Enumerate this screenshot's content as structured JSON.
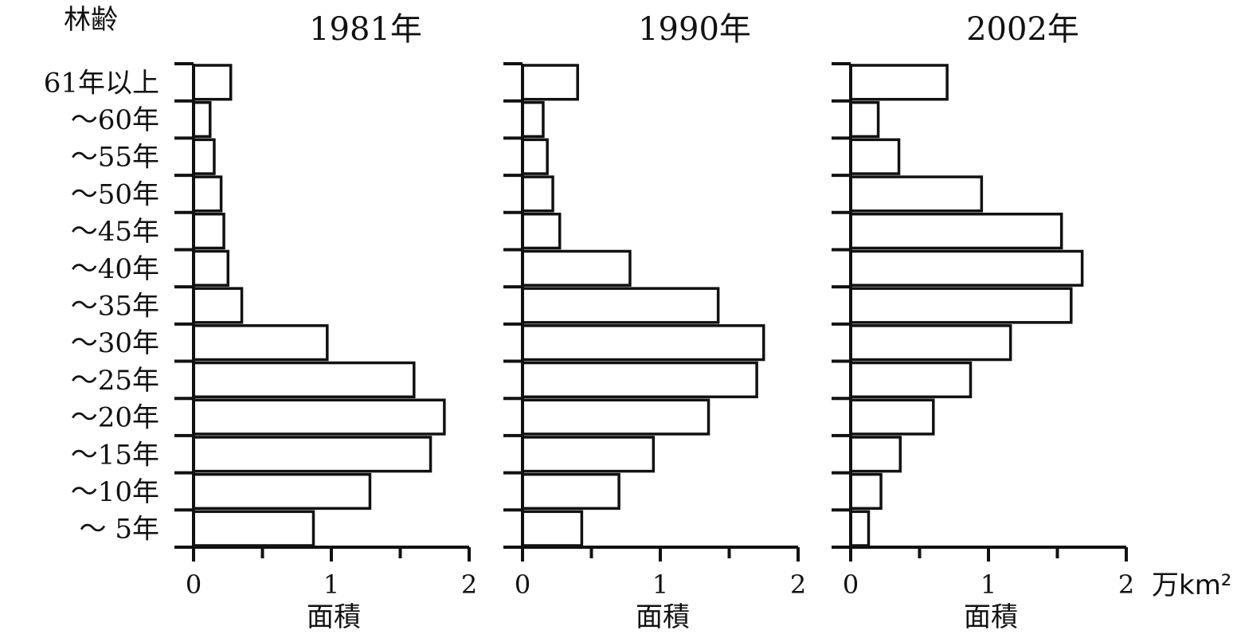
{
  "y_axis_title": "林齢",
  "unit_label": "万km²",
  "chart_data": {
    "type": "bar",
    "orientation": "horizontal",
    "categories": [
      "61年以上",
      "～60年",
      "～55年",
      "～50年",
      "～45年",
      "～40年",
      "～35年",
      "～30年",
      "～25年",
      "～20年",
      "～15年",
      "～10年",
      "～ 5年"
    ],
    "xlim": [
      0,
      2
    ],
    "xticks": [
      "0",
      "1",
      "2"
    ],
    "panels": [
      {
        "title": "1981年",
        "xlabel": "面積",
        "values": [
          0.27,
          0.12,
          0.15,
          0.2,
          0.22,
          0.25,
          0.35,
          0.97,
          1.6,
          1.82,
          1.72,
          1.28,
          0.87
        ]
      },
      {
        "title": "1990年",
        "xlabel": "面積",
        "values": [
          0.4,
          0.15,
          0.18,
          0.22,
          0.27,
          0.78,
          1.42,
          1.75,
          1.7,
          1.35,
          0.95,
          0.7,
          0.43
        ]
      },
      {
        "title": "2002年",
        "xlabel": "面積",
        "values": [
          0.7,
          0.2,
          0.35,
          0.95,
          1.53,
          1.68,
          1.6,
          1.16,
          0.87,
          0.6,
          0.36,
          0.22,
          0.13
        ]
      }
    ]
  }
}
